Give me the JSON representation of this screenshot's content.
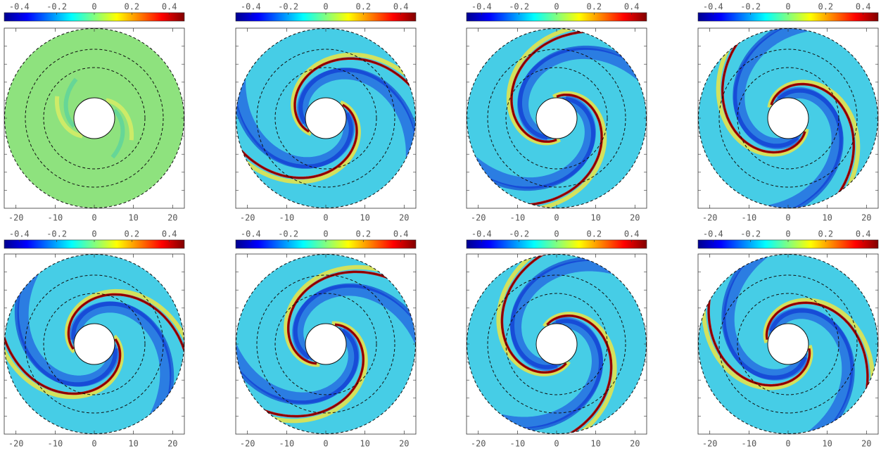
{
  "chart_data": [
    {
      "type": "heatmap",
      "clim": [
        -0.48,
        0.48
      ],
      "cticks": [
        -0.4,
        -0.2,
        0,
        0.2,
        0.4
      ],
      "xlim": [
        -23,
        23
      ],
      "xticks": [
        -20,
        -10,
        0,
        10,
        20
      ]
    },
    {
      "type": "heatmap",
      "clim": [
        -0.48,
        0.48
      ],
      "cticks": [
        -0.4,
        -0.2,
        0,
        0.2,
        0.4
      ],
      "xlim": [
        -23,
        23
      ],
      "xticks": [
        -20,
        -10,
        0,
        10,
        20
      ]
    },
    {
      "type": "heatmap",
      "clim": [
        -0.48,
        0.48
      ],
      "cticks": [
        -0.4,
        -0.2,
        0,
        0.2,
        0.4
      ],
      "xlim": [
        -23,
        23
      ],
      "xticks": [
        -20,
        -10,
        0,
        10,
        20
      ]
    },
    {
      "type": "heatmap",
      "clim": [
        -0.48,
        0.48
      ],
      "cticks": [
        -0.4,
        -0.2,
        0,
        0.2,
        0.4
      ],
      "xlim": [
        -23,
        23
      ],
      "xticks": [
        -20,
        -10,
        0,
        10,
        20
      ]
    },
    {
      "type": "heatmap",
      "clim": [
        -0.48,
        0.48
      ],
      "cticks": [
        -0.4,
        -0.2,
        0,
        0.2,
        0.4
      ],
      "xlim": [
        -23,
        23
      ],
      "xticks": [
        -20,
        -10,
        0,
        10,
        20
      ]
    },
    {
      "type": "heatmap",
      "clim": [
        -0.48,
        0.48
      ],
      "cticks": [
        -0.4,
        -0.2,
        0,
        0.2,
        0.4
      ],
      "xlim": [
        -23,
        23
      ],
      "xticks": [
        -20,
        -10,
        0,
        10,
        20
      ]
    },
    {
      "type": "heatmap",
      "clim": [
        -0.48,
        0.48
      ],
      "cticks": [
        -0.4,
        -0.2,
        0,
        0.2,
        0.4
      ],
      "xlim": [
        -23,
        23
      ],
      "xticks": [
        -20,
        -10,
        0,
        10,
        20
      ]
    },
    {
      "type": "heatmap",
      "clim": [
        -0.48,
        0.48
      ],
      "cticks": [
        -0.4,
        -0.2,
        0,
        0.2,
        0.4
      ],
      "xlim": [
        -23,
        23
      ],
      "xticks": [
        -20,
        -10,
        0,
        10,
        20
      ]
    }
  ]
}
